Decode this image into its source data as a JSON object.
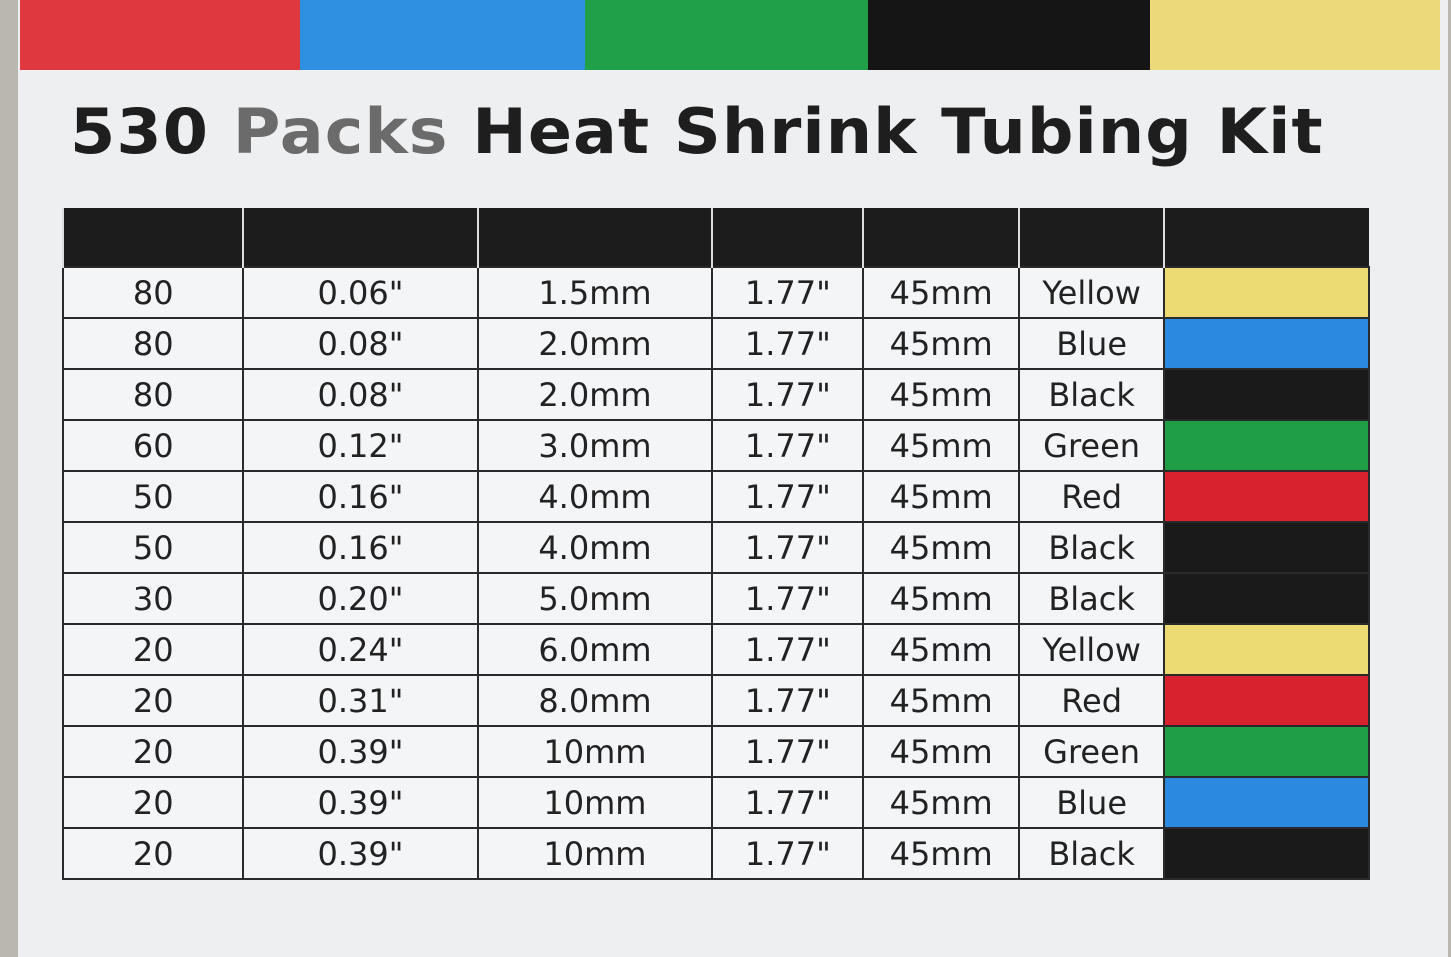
{
  "title": {
    "part1": "530",
    "part2": "Packs",
    "part3": "Heat Shrink Tubing Kit"
  },
  "strip_colors": [
    "#e0383f",
    "#2f8fe0",
    "#21a04a",
    "#151515",
    "#ecd97a"
  ],
  "color_map": {
    "Yellow": "#ecdb72",
    "Blue": "#2b8ae0",
    "Black": "#1a1a1a",
    "Green": "#1f9e45",
    "Red": "#d8232f"
  },
  "rows": [
    {
      "qty": "80",
      "inch": "0.06\"",
      "mm": "1.5mm",
      "len_in": "1.77\"",
      "len_mm": "45mm",
      "color": "Yellow"
    },
    {
      "qty": "80",
      "inch": "0.08\"",
      "mm": "2.0mm",
      "len_in": "1.77\"",
      "len_mm": "45mm",
      "color": "Blue"
    },
    {
      "qty": "80",
      "inch": "0.08\"",
      "mm": "2.0mm",
      "len_in": "1.77\"",
      "len_mm": "45mm",
      "color": "Black"
    },
    {
      "qty": "60",
      "inch": "0.12\"",
      "mm": "3.0mm",
      "len_in": "1.77\"",
      "len_mm": "45mm",
      "color": "Green"
    },
    {
      "qty": "50",
      "inch": "0.16\"",
      "mm": "4.0mm",
      "len_in": "1.77\"",
      "len_mm": "45mm",
      "color": "Red"
    },
    {
      "qty": "50",
      "inch": "0.16\"",
      "mm": "4.0mm",
      "len_in": "1.77\"",
      "len_mm": "45mm",
      "color": "Black"
    },
    {
      "qty": "30",
      "inch": "0.20\"",
      "mm": "5.0mm",
      "len_in": "1.77\"",
      "len_mm": "45mm",
      "color": "Black"
    },
    {
      "qty": "20",
      "inch": "0.24\"",
      "mm": "6.0mm",
      "len_in": "1.77\"",
      "len_mm": "45mm",
      "color": "Yellow"
    },
    {
      "qty": "20",
      "inch": "0.31\"",
      "mm": "8.0mm",
      "len_in": "1.77\"",
      "len_mm": "45mm",
      "color": "Red"
    },
    {
      "qty": "20",
      "inch": "0.39\"",
      "mm": "10mm",
      "len_in": "1.77\"",
      "len_mm": "45mm",
      "color": "Green"
    },
    {
      "qty": "20",
      "inch": "0.39\"",
      "mm": "10mm",
      "len_in": "1.77\"",
      "len_mm": "45mm",
      "color": "Blue"
    },
    {
      "qty": "20",
      "inch": "0.39\"",
      "mm": "10mm",
      "len_in": "1.77\"",
      "len_mm": "45mm",
      "color": "Black"
    }
  ]
}
